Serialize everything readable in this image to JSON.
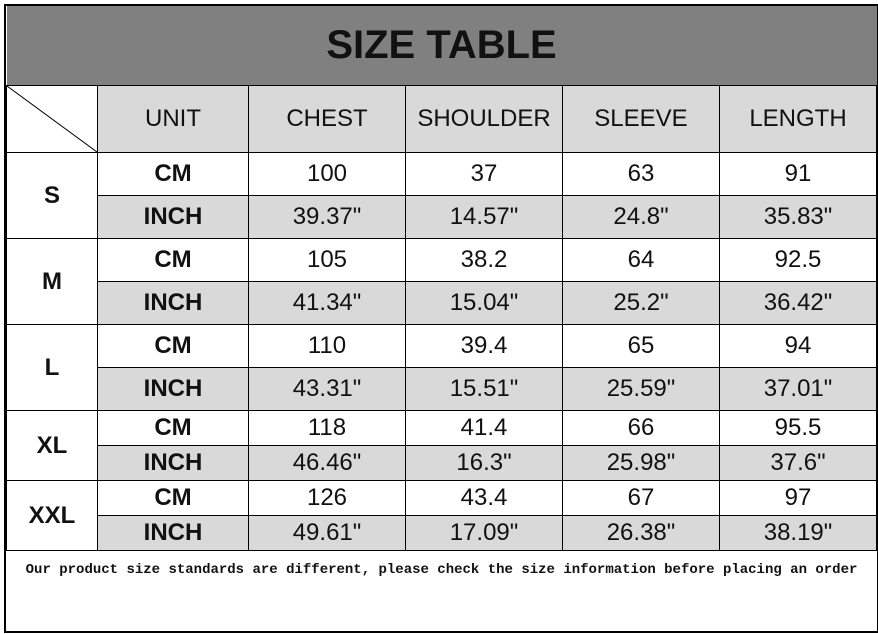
{
  "title": "SIZE TABLE",
  "headers": [
    "UNIT",
    "CHEST",
    "SHOULDER",
    "SLEEVE",
    "LENGTH"
  ],
  "rows": [
    {
      "size": "S",
      "cm": {
        "unit": "CM",
        "values": [
          "100",
          "37",
          "63",
          "91"
        ]
      },
      "inch": {
        "unit": "INCH",
        "values": [
          "39.37\"",
          "14.57\"",
          "24.8\"",
          "35.83\""
        ]
      }
    },
    {
      "size": "M",
      "cm": {
        "unit": "CM",
        "values": [
          "105",
          "38.2",
          "64",
          "92.5"
        ]
      },
      "inch": {
        "unit": "INCH",
        "values": [
          "41.34\"",
          "15.04\"",
          "25.2\"",
          "36.42\""
        ]
      }
    },
    {
      "size": "L",
      "cm": {
        "unit": "CM",
        "values": [
          "110",
          "39.4",
          "65",
          "94"
        ]
      },
      "inch": {
        "unit": "INCH",
        "values": [
          "43.31\"",
          "15.51\"",
          "25.59\"",
          "37.01\""
        ]
      }
    },
    {
      "size": "XL",
      "cm": {
        "unit": "CM",
        "values": [
          "118",
          "41.4",
          "66",
          "95.5"
        ]
      },
      "inch": {
        "unit": "INCH",
        "values": [
          "46.46\"",
          "16.3\"",
          "25.98\"",
          "37.6\""
        ]
      }
    },
    {
      "size": "XXL",
      "cm": {
        "unit": "CM",
        "values": [
          "126",
          "43.4",
          "67",
          "97"
        ]
      },
      "inch": {
        "unit": "INCH",
        "values": [
          "49.61\"",
          "17.09\"",
          "26.38\"",
          "38.19\""
        ]
      }
    }
  ],
  "footer": "Our product size standards are different, please check the size information before placing an order",
  "colors": {
    "title_bg": "#808080",
    "header_bg": "#d9d9d9",
    "inch_row_bg": "#d9d9d9"
  }
}
